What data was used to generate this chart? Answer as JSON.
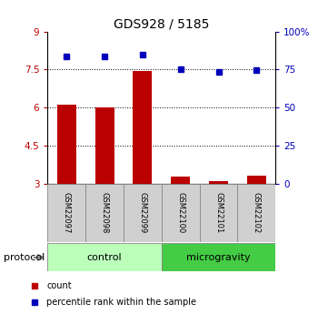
{
  "title": "GDS928 / 5185",
  "samples": [
    "GSM22097",
    "GSM22098",
    "GSM22099",
    "GSM22100",
    "GSM22101",
    "GSM22102"
  ],
  "bar_values": [
    6.12,
    6.0,
    7.45,
    3.28,
    3.1,
    3.32
  ],
  "scatter_values": [
    8.0,
    8.0,
    8.1,
    7.5,
    7.4,
    7.47
  ],
  "bar_bottom": 3.0,
  "ylim": [
    3.0,
    9.0
  ],
  "yticks_left": [
    3,
    4.5,
    6,
    7.5,
    9
  ],
  "ytick_labels_left": [
    "3",
    "4.5",
    "6",
    "7.5",
    "9"
  ],
  "yticks_right": [
    3.0,
    4.5,
    6.0,
    7.5,
    9.0
  ],
  "ytick_labels_right": [
    "0",
    "25",
    "50",
    "75",
    "100%"
  ],
  "hlines": [
    4.5,
    6.0,
    7.5
  ],
  "bar_color": "#bb0000",
  "scatter_color": "#0000bb",
  "group_labels": [
    "control",
    "microgravity"
  ],
  "group_colors_light": "#bbffbb",
  "group_colors_dark": "#44cc44",
  "protocol_label": "protocol",
  "legend_bar_label": "count",
  "legend_scatter_label": "percentile rank within the sample",
  "bar_width": 0.5,
  "title_fontsize": 10,
  "tick_fontsize": 7.5,
  "sample_fontsize": 6,
  "proto_fontsize": 8,
  "legend_fontsize": 7
}
